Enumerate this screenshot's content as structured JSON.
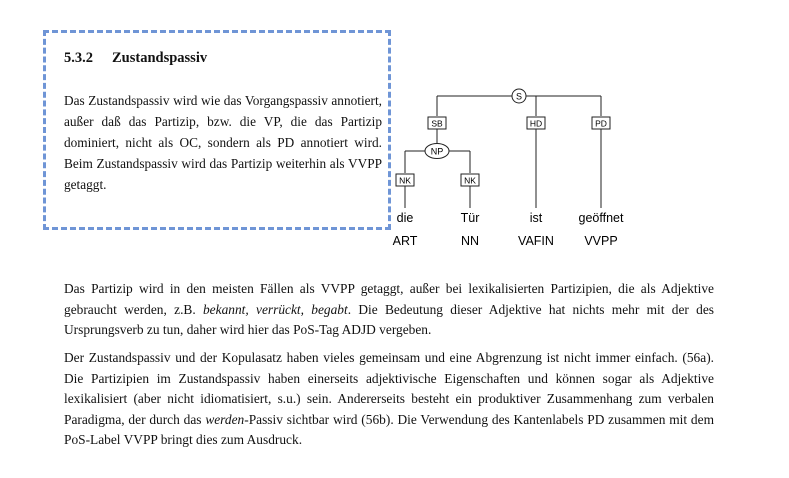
{
  "section": {
    "number": "5.3.2",
    "title": "Zustandspassiv"
  },
  "intro_text": "Das Zustandspassiv wird wie das Vorgangspassiv annotiert, außer daß das Partizip, bzw. die VP, die das Partizip dominiert, nicht als OC, sondern als PD annotiert wird. Beim Zustandspassiv wird das Partizip weiterhin als VVPP getaggt.",
  "tree": {
    "nodes": {
      "root": "S",
      "np": "NP"
    },
    "edges": {
      "sb": "SB",
      "hd": "HD",
      "pd": "PD",
      "nk1": "NK",
      "nk2": "NK"
    },
    "tokens": [
      {
        "word": "die",
        "tag": "ART"
      },
      {
        "word": "Tür",
        "tag": "NN"
      },
      {
        "word": "ist",
        "tag": "VAFIN"
      },
      {
        "word": "geöffnet",
        "tag": "VVPP"
      }
    ]
  },
  "paragraph1": {
    "part1": "Das Partizip wird in den meisten Fällen als VVPP getaggt, außer bei lexikalisierten Partizipien, die als Adjektive gebraucht werden, z.B. ",
    "examples": "bekannt, verrückt, begabt",
    "part2": ". Die Bedeutung dieser Adjektive hat nichts mehr mit der des Ursprungsverb zu tun, daher wird hier das PoS-Tag ADJD vergeben."
  },
  "paragraph2": {
    "part1": "Der Zustandspassiv und der Kopulasatz haben vieles gemeinsam und eine Abgrenzung ist nicht immer einfach. (56a). Die Partizipien im Zustandspassiv haben einerseits adjektivische Eigenschaften und können sogar als Adjektive lexikalisiert (aber nicht idiomatisiert, s.u.) sein. Andererseits besteht ein produktiver Zusammenhang zum verbalen Paradigma, der durch das ",
    "emphasis": "werden",
    "part2": "-Passiv sichtbar wird (56b). Die Verwendung des Kantenlabels PD zusammen mit dem PoS-Label VVPP bringt dies zum Ausdruck."
  }
}
